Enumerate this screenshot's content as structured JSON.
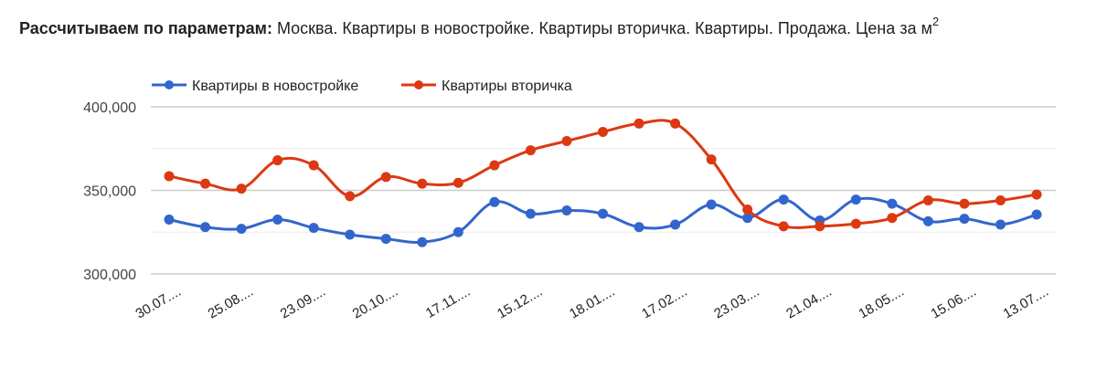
{
  "header": {
    "label": "Рассчитываем по параметрам:",
    "params_text": "Москва. Квартиры в новостройке. Квартиры вторичка. Квартиры. Продажа. Цена за м",
    "superscript": "2"
  },
  "colors": {
    "series_new": "#3366cc",
    "series_secondary": "#dc3912",
    "grid_major": "#cccccc",
    "grid_minor": "#ebebeb"
  },
  "chart_data": {
    "type": "line",
    "title": "",
    "xlabel": "",
    "ylabel": "",
    "ylim": [
      300000,
      400000
    ],
    "yticks": [
      "400,000",
      "350,000",
      "300,000"
    ],
    "grid": true,
    "legend_position": "top",
    "x_tick_labels": [
      "30.07....",
      "25.08....",
      "23.09....",
      "20.10....",
      "17.11....",
      "15.12....",
      "18.01....",
      "17.02....",
      "23.03....",
      "21.04....",
      "18.05....",
      "15.06....",
      "13.07...."
    ],
    "x_count": 25,
    "series": [
      {
        "name": "Квартиры в новостройке",
        "color": "#3366cc",
        "values": [
          332500,
          328000,
          327000,
          332500,
          327500,
          323500,
          321000,
          319000,
          325000,
          343000,
          336000,
          338000,
          336000,
          328000,
          329500,
          341500,
          333500,
          344500,
          332000,
          344500,
          342000,
          331500,
          333000,
          329500,
          335500
        ]
      },
      {
        "name": "Квартиры вторичка",
        "color": "#dc3912",
        "values": [
          358500,
          354000,
          351000,
          368000,
          365000,
          346500,
          358000,
          354000,
          354500,
          365000,
          374000,
          379500,
          385000,
          390000,
          390000,
          368500,
          338500,
          328500,
          328500,
          330000,
          333500,
          344000,
          342000,
          344000,
          347500
        ]
      }
    ]
  },
  "legend": {
    "items": [
      {
        "label": "Квартиры в новостройке"
      },
      {
        "label": "Квартиры вторичка"
      }
    ]
  }
}
